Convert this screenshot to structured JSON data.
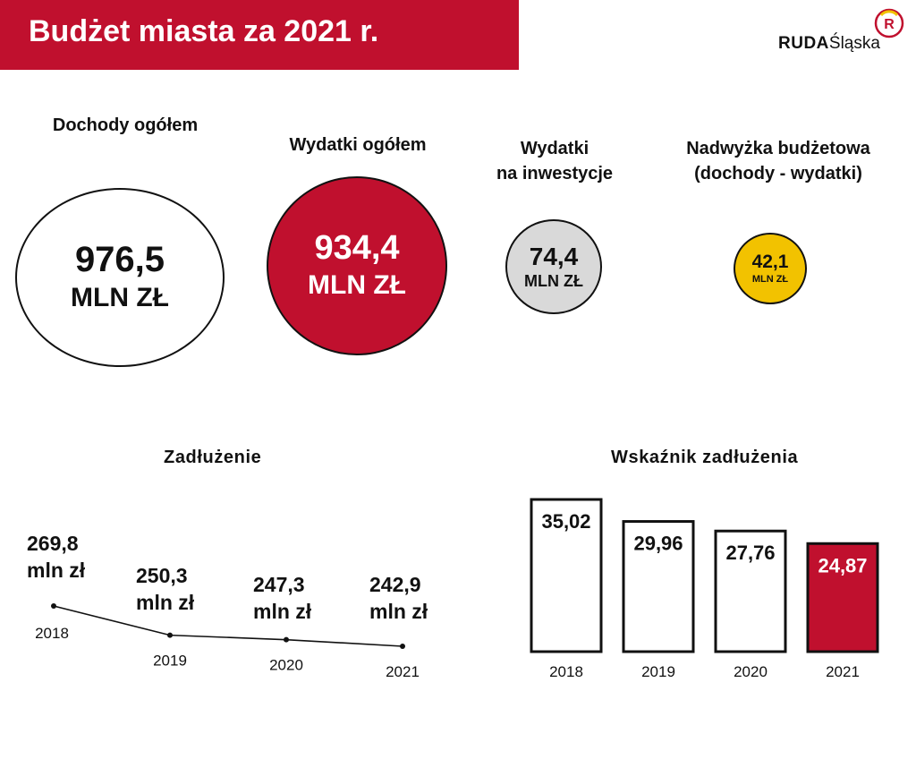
{
  "header": {
    "title": "Budżet miasta za 2021 r."
  },
  "logo": {
    "bold": "RUDA",
    "light": "Śląska",
    "mark": "R"
  },
  "colors": {
    "red": "#c0102e",
    "gray": "#d9d9d9",
    "yellow": "#f2c200"
  },
  "kpis": [
    {
      "label": "Dochody ogółem",
      "value": "976,5",
      "unit": "MLN ZŁ"
    },
    {
      "label": "Wydatki ogółem",
      "value": "934,4",
      "unit": "MLN ZŁ"
    },
    {
      "label": "Wydatki\nna inwestycje",
      "value": "74,4",
      "unit": "MLN ZŁ"
    },
    {
      "label": "Nadwyżka budżetowa\n(dochody - wydatki)",
      "value": "42,1",
      "unit": "MLN ZŁ"
    }
  ],
  "chart_data": [
    {
      "type": "line",
      "title": "Zadłużenie",
      "x": [
        "2018",
        "2019",
        "2020",
        "2021"
      ],
      "values": [
        269.8,
        250.3,
        247.3,
        242.9
      ],
      "data_labels": [
        "269,8",
        "250,3",
        "247,3",
        "242,9"
      ],
      "unit_label": "mln zł"
    },
    {
      "type": "bar",
      "title": "Wskaźnik zadłużenia",
      "categories": [
        "2018",
        "2019",
        "2020",
        "2021"
      ],
      "values": [
        35.02,
        29.96,
        27.76,
        24.87
      ],
      "data_labels": [
        "35,02",
        "29,96",
        "27,76",
        "24,87"
      ],
      "highlight_index": 3
    }
  ]
}
